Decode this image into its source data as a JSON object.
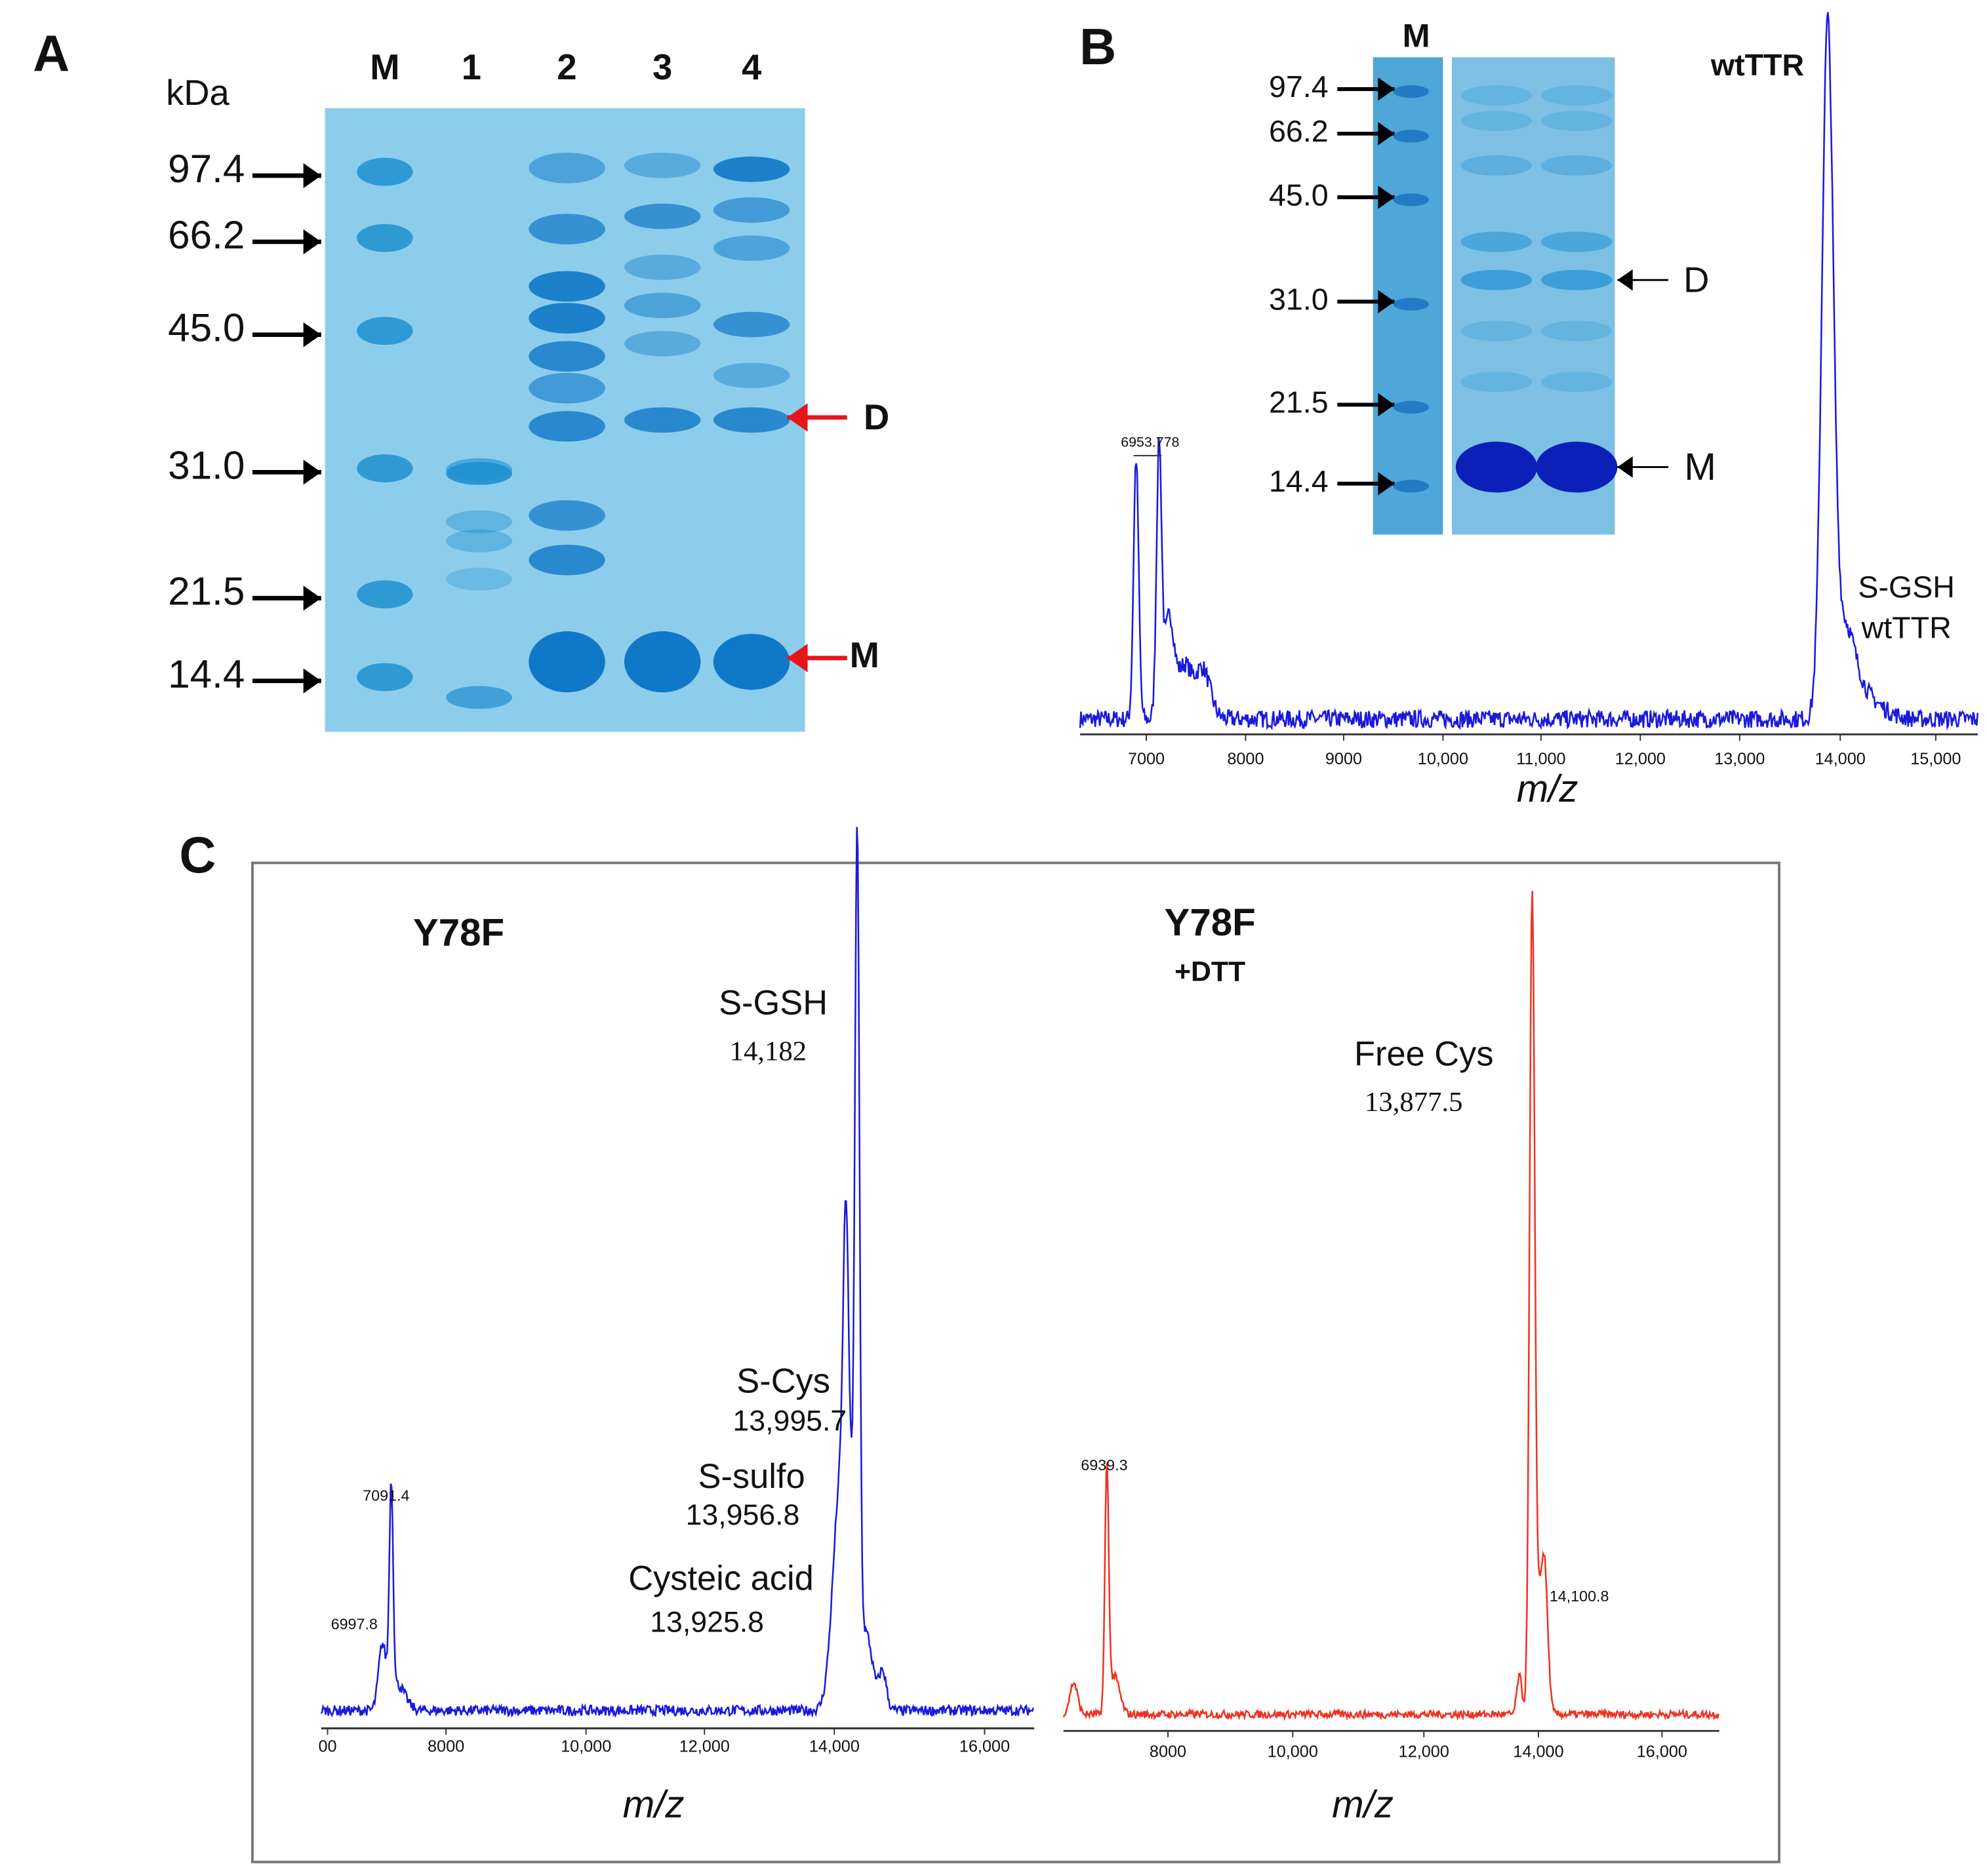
{
  "panels": {
    "A": {
      "label": "A",
      "unit": "kDa",
      "lanes": [
        "M",
        "1",
        "2",
        "3",
        "4"
      ],
      "markers": [
        "97.4",
        "66.2",
        "45.0",
        "31.0",
        "21.5",
        "14.4"
      ],
      "bands": [
        "D",
        "M"
      ]
    },
    "B": {
      "label": "B",
      "lane": "M",
      "markers": [
        "97.4",
        "66.2",
        "45.0",
        "31.0",
        "21.5",
        "14.4"
      ],
      "bands": [
        "D",
        "M"
      ],
      "peak_label": "6953.778",
      "main_peak": "wtTTR",
      "adduct": [
        "S-GSH",
        "wtTTR"
      ],
      "xticks": [
        "7000",
        "8000",
        "9000",
        "10,000",
        "11,000",
        "12,000",
        "13,000",
        "14,000",
        "15,000"
      ],
      "xlabel": "m/z"
    },
    "C": {
      "label": "C",
      "left": {
        "title": "Y78F",
        "peaks": [
          {
            "name": "S-GSH",
            "mass": "14,182"
          },
          {
            "name": "S-Cys",
            "mass": "13,995.7"
          },
          {
            "name": "S-sulfo",
            "mass": "13,956.8"
          },
          {
            "name": "Cysteic acid",
            "mass": "13,925.8"
          }
        ],
        "small_peaks": [
          "7091.4",
          "6997.8"
        ],
        "xticks": [
          "00",
          "8000",
          "10,000",
          "12,000",
          "14,000",
          "16,000"
        ],
        "xlabel": "m/z"
      },
      "right": {
        "title": "Y78F",
        "subtitle": "+DTT",
        "peaks": [
          {
            "name": "Free Cys",
            "mass": "13,877.5"
          }
        ],
        "small_peaks": [
          "6939.3",
          "14,100.8"
        ],
        "xticks": [
          "8000",
          "10,000",
          "12,000",
          "14,000",
          "16,000"
        ],
        "xlabel": "m/z"
      }
    }
  }
}
